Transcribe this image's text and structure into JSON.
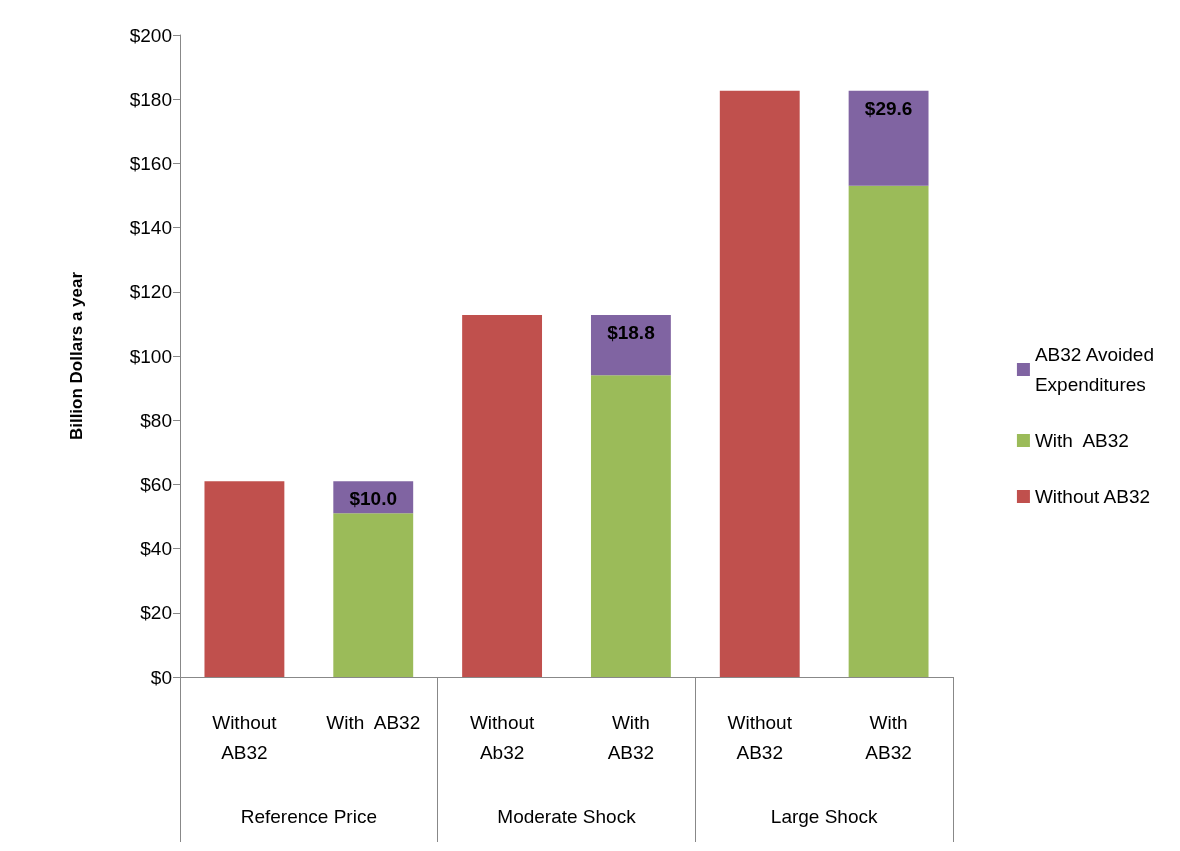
{
  "chart_data": {
    "type": "bar",
    "stacked": true,
    "ylabel": "Billion Dollars a year",
    "categories": [
      "Without\nAB32",
      "With  AB32",
      "Without\nAb32",
      "With\nAB32",
      "Without\nAB32",
      "With\nAB32"
    ],
    "series": [
      {
        "name": "Without AB32",
        "color": "#c0504d",
        "values": [
          61,
          null,
          112.8,
          null,
          182.6,
          null
        ]
      },
      {
        "name": "With  AB32",
        "color": "#9bbb59",
        "values": [
          null,
          51,
          null,
          94,
          null,
          153
        ]
      },
      {
        "name": "AB32 Avoided Expenditures",
        "color": "#8064a2",
        "values": [
          null,
          10.0,
          null,
          18.8,
          null,
          29.6
        ],
        "value_labels": [
          null,
          "$10.0",
          null,
          "$18.8",
          null,
          "$29.6"
        ]
      }
    ],
    "ylim": [
      0,
      200
    ],
    "yticks": [
      {
        "value": 0,
        "label": "$0"
      },
      {
        "value": 20,
        "label": "$20"
      },
      {
        "value": 40,
        "label": "$40"
      },
      {
        "value": 60,
        "label": "$60"
      },
      {
        "value": 80,
        "label": "$80"
      },
      {
        "value": 100,
        "label": "$100"
      },
      {
        "value": 120,
        "label": "$120"
      },
      {
        "value": 140,
        "label": "$140"
      },
      {
        "value": 160,
        "label": "$160"
      },
      {
        "value": 180,
        "label": "$180"
      },
      {
        "value": 200,
        "label": "$200"
      }
    ],
    "annotations": [
      "Reference Price",
      "Moderate Shock",
      "Large Shock"
    ],
    "legend": "right",
    "grid": false
  }
}
